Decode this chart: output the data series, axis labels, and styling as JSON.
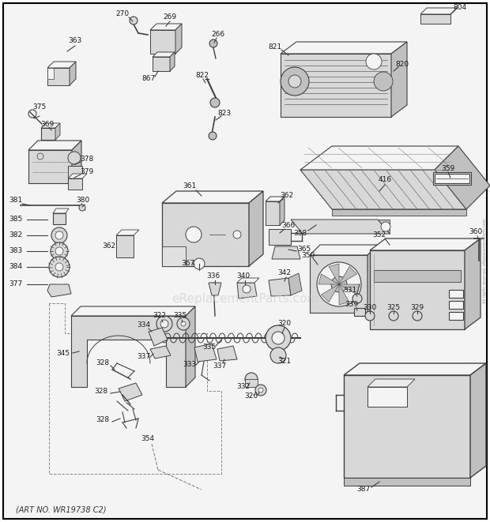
{
  "footer": "(ART NO. WR19738 C2)",
  "watermark": "eReplacementParts.com",
  "bg_color": "#ffffff",
  "border_color": "#000000",
  "lc": "#404040",
  "fc_light": "#d8d8d8",
  "fc_mid": "#c0c0c0",
  "fc_dark": "#a8a8a8",
  "fc_white": "#f4f4f4",
  "label_fontsize": 6.5,
  "watermark_fontsize": 11,
  "text_color": "#1a1a1a"
}
